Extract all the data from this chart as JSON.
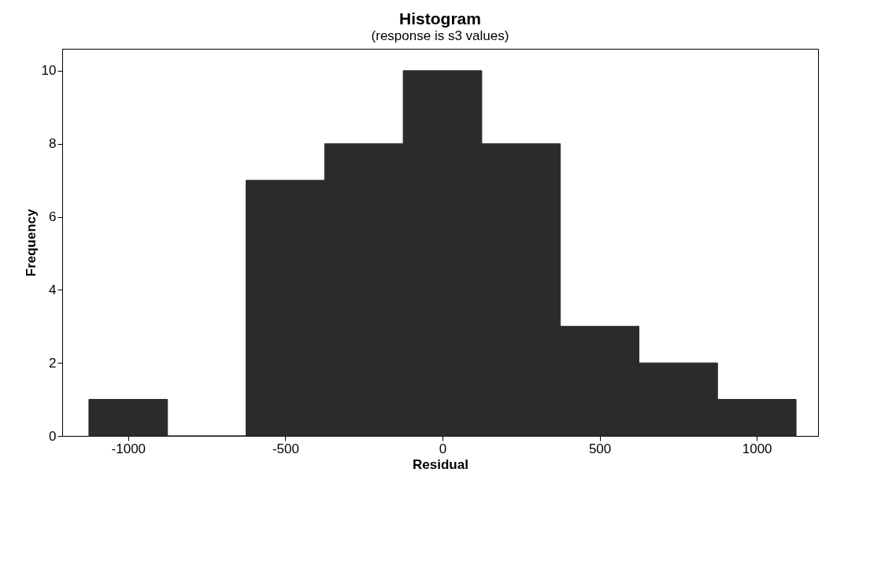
{
  "chart_data": {
    "type": "histogram",
    "title": "Histogram",
    "subtitle": "(response is s3 values)",
    "xlabel": "Residual",
    "ylabel": "Frequency",
    "bins": [
      -1125,
      -875,
      -625,
      -375,
      -125,
      125,
      375,
      625,
      875,
      1125
    ],
    "values": [
      1,
      0,
      7,
      8,
      10,
      8,
      3,
      2,
      1
    ],
    "color": "#2b2b2b",
    "xlim": [
      -1210,
      1195
    ],
    "ylim": [
      0,
      10.6
    ],
    "xticks": [
      -1000,
      -500,
      0,
      500,
      1000
    ],
    "yticks": [
      0,
      2,
      4,
      6,
      8,
      10
    ]
  }
}
